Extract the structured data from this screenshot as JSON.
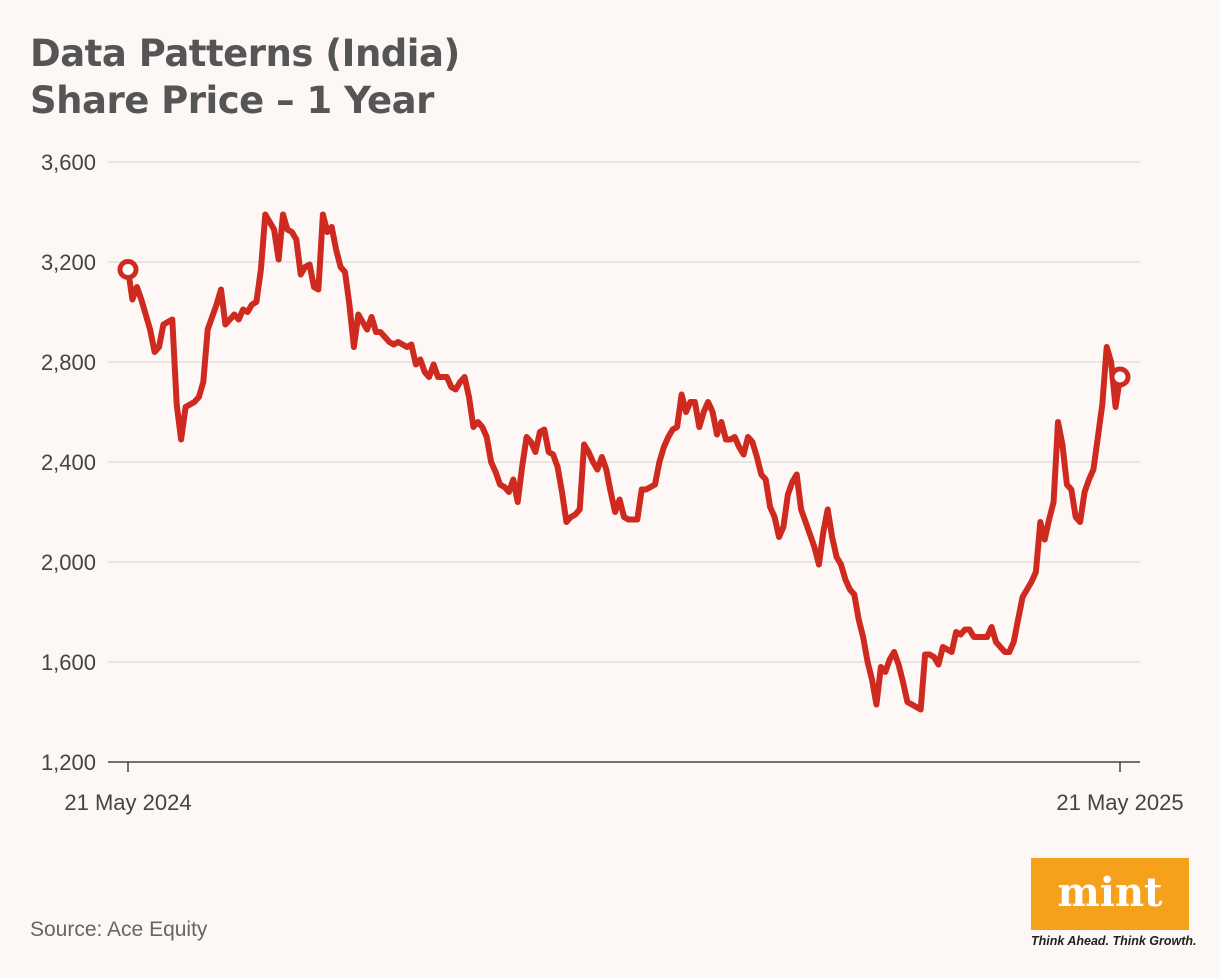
{
  "title": {
    "line1": "Data Patterns (India)",
    "line2": "Share Price – 1 Year"
  },
  "source": "Source: Ace Equity",
  "logo": {
    "word": "mint",
    "tagline": "Think Ahead. Think Growth."
  },
  "colors": {
    "line": "#cf2a1f",
    "grid": "#e3dedc",
    "axis": "#444444",
    "logo_bg": "#f5a11c"
  },
  "chart_data": {
    "type": "line",
    "title": "Data Patterns (India) Share Price – 1 Year",
    "xlabel": "",
    "ylabel": "",
    "ylim": [
      1200,
      3600
    ],
    "yticks": [
      1200,
      1600,
      2000,
      2400,
      2800,
      3200,
      3600
    ],
    "ytick_labels": [
      "1,200",
      "1,600",
      "2,000",
      "2,400",
      "2,800",
      "3,200",
      "3,600"
    ],
    "x_start_label": "21 May 2024",
    "x_end_label": "21 May 2025",
    "grid": true,
    "series": [
      {
        "name": "Share Price",
        "values": [
          3170,
          3050,
          3100,
          3050,
          2990,
          2930,
          2840,
          2860,
          2950,
          2960,
          2970,
          2630,
          2490,
          2620,
          2630,
          2640,
          2660,
          2720,
          2930,
          2980,
          3030,
          3090,
          2950,
          2970,
          2990,
          2970,
          3010,
          3000,
          3030,
          3040,
          3170,
          3390,
          3360,
          3330,
          3210,
          3390,
          3330,
          3320,
          3290,
          3150,
          3180,
          3190,
          3100,
          3090,
          3390,
          3320,
          3340,
          3250,
          3180,
          3160,
          3030,
          2860,
          2990,
          2960,
          2930,
          2980,
          2920,
          2920,
          2900,
          2880,
          2870,
          2880,
          2870,
          2860,
          2870,
          2790,
          2810,
          2760,
          2740,
          2790,
          2740,
          2740,
          2740,
          2700,
          2690,
          2720,
          2740,
          2660,
          2540,
          2560,
          2540,
          2500,
          2400,
          2360,
          2310,
          2300,
          2280,
          2330,
          2240,
          2380,
          2500,
          2480,
          2440,
          2520,
          2530,
          2440,
          2430,
          2380,
          2280,
          2160,
          2180,
          2190,
          2210,
          2470,
          2440,
          2400,
          2370,
          2420,
          2370,
          2280,
          2200,
          2250,
          2180,
          2170,
          2170,
          2170,
          2290,
          2290,
          2300,
          2310,
          2400,
          2460,
          2500,
          2530,
          2540,
          2670,
          2600,
          2640,
          2640,
          2540,
          2600,
          2640,
          2600,
          2510,
          2560,
          2490,
          2490,
          2500,
          2460,
          2430,
          2500,
          2480,
          2420,
          2350,
          2330,
          2220,
          2180,
          2100,
          2140,
          2270,
          2320,
          2350,
          2210,
          2160,
          2110,
          2060,
          1990,
          2120,
          2210,
          2100,
          2020,
          1990,
          1930,
          1890,
          1870,
          1770,
          1700,
          1600,
          1530,
          1430,
          1580,
          1560,
          1610,
          1640,
          1590,
          1520,
          1440,
          1430,
          1420,
          1410,
          1630,
          1630,
          1620,
          1590,
          1660,
          1650,
          1640,
          1720,
          1710,
          1730,
          1730,
          1700,
          1700,
          1700,
          1700,
          1740,
          1680,
          1660,
          1640,
          1640,
          1680,
          1770,
          1860,
          1890,
          1920,
          1960,
          2160,
          2090,
          2170,
          2240,
          2560,
          2470,
          2310,
          2290,
          2180,
          2160,
          2280,
          2330,
          2370,
          2500,
          2630,
          2860,
          2800,
          2620,
          2740
        ]
      }
    ]
  }
}
